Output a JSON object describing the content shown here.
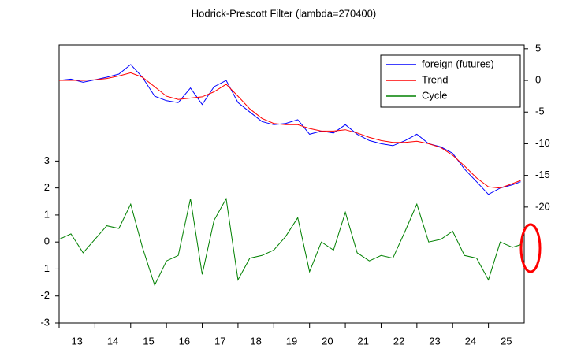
{
  "chart_data": {
    "type": "line",
    "title": "Hodrick-Prescott Filter (lambda=270400)",
    "x": [
      13,
      13.33,
      13.67,
      14,
      14.33,
      14.67,
      15,
      15.33,
      15.67,
      16,
      16.33,
      16.67,
      17,
      17.33,
      17.67,
      18,
      18.33,
      18.67,
      19,
      19.33,
      19.67,
      20,
      20.33,
      20.67,
      21,
      21.33,
      21.67,
      22,
      22.33,
      22.67,
      23,
      23.33,
      23.67,
      24,
      24.33,
      24.67,
      25,
      25.33,
      25.67,
      25.9
    ],
    "series": [
      {
        "name": "foreign (futures)",
        "color": "#0000ff",
        "axis": "y2",
        "values": [
          0,
          0.2,
          -0.3,
          0.1,
          0.5,
          1.0,
          2.5,
          0.5,
          -2.5,
          -3.2,
          -3.5,
          -1.2,
          -3.8,
          -1.0,
          0.0,
          -3.5,
          -5.0,
          -6.5,
          -7.0,
          -6.8,
          -6.2,
          -8.5,
          -8.0,
          -8.3,
          -7.0,
          -8.5,
          -9.5,
          -10.0,
          -10.3,
          -9.5,
          -8.5,
          -10.0,
          -10.5,
          -11.5,
          -14.0,
          -16.0,
          -18.0,
          -17.0,
          -16.5,
          -16.0
        ]
      },
      {
        "name": "Trend",
        "color": "#ff0000",
        "axis": "y2",
        "values": [
          0,
          0,
          0,
          0.1,
          0.3,
          0.7,
          1.2,
          0.5,
          -1.0,
          -2.5,
          -3.0,
          -2.8,
          -2.6,
          -1.8,
          -0.6,
          -2.5,
          -4.5,
          -6.0,
          -6.8,
          -7.0,
          -7.0,
          -7.6,
          -8.0,
          -8.0,
          -7.8,
          -8.3,
          -9.0,
          -9.5,
          -9.8,
          -9.8,
          -9.6,
          -10.0,
          -10.6,
          -11.8,
          -13.5,
          -15.4,
          -16.8,
          -17.0,
          -16.3,
          -15.8
        ]
      },
      {
        "name": "Cycle",
        "color": "#008000",
        "values": [
          0.1,
          0.3,
          -0.4,
          0.1,
          0.6,
          0.5,
          1.4,
          -0.2,
          -1.6,
          -0.7,
          -0.5,
          1.6,
          -1.2,
          0.8,
          1.6,
          -1.4,
          -0.6,
          -0.5,
          -0.3,
          0.2,
          0.9,
          -1.1,
          0,
          -0.3,
          1.1,
          -0.4,
          -0.7,
          -0.5,
          -0.6,
          0.4,
          1.4,
          0,
          0.1,
          0.4,
          -0.5,
          -0.6,
          -1.4,
          0,
          -0.2,
          -0.1
        ]
      }
    ],
    "xlim": [
      13,
      26
    ],
    "xticks": [
      13,
      14,
      15,
      16,
      17,
      18,
      19,
      20,
      21,
      22,
      23,
      24,
      25
    ],
    "ylim": [
      -3,
      7.3
    ],
    "yticks": [
      -3,
      -2,
      -1,
      0,
      1,
      2,
      3
    ],
    "y2lim": [
      -38.3,
      5.6
    ],
    "y2ticks": [
      -20,
      -15,
      -10,
      -5,
      0,
      5
    ],
    "legend": "upper right"
  }
}
